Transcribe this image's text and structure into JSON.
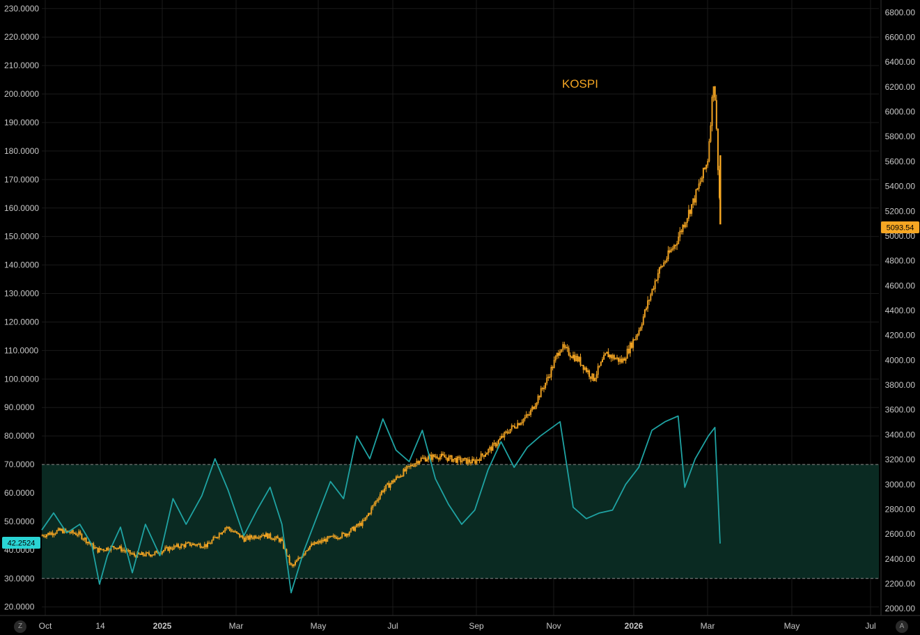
{
  "colors": {
    "background": "#000000",
    "grid": "#1a1a1a",
    "candle": "#f5a623",
    "rsi_line": "#1fa3a3",
    "band_fill": "#0a2a22",
    "band_line": "#8a8a8a",
    "left_badge": "#2ad4d4",
    "right_badge": "#f5a623"
  },
  "corner_buttons": {
    "left": "Z",
    "right": "A"
  },
  "chart_data": {
    "type": "line",
    "x_labels": [
      "Oct",
      "14",
      "2025",
      "Mar",
      "May",
      "Jul",
      "Sep",
      "Nov",
      "2026",
      "Mar",
      "May",
      "Jul"
    ],
    "x_bold": [
      "2025",
      "2026"
    ],
    "left_axis": {
      "ticks": [
        "230.0000",
        "220.0000",
        "210.0000",
        "200.0000",
        "190.0000",
        "180.0000",
        "170.0000",
        "160.0000",
        "150.0000",
        "140.0000",
        "130.0000",
        "120.0000",
        "110.0000",
        "100.0000",
        "90.0000",
        "80.0000",
        "70.0000",
        "60.0000",
        "50.0000",
        "40.0000",
        "30.0000",
        "20.0000"
      ],
      "range": [
        17,
        233
      ],
      "last_value_label": "42.2524",
      "band": [
        30,
        70
      ]
    },
    "right_axis": {
      "ticks": [
        "6800.00",
        "6600.00",
        "6400.00",
        "6200.00",
        "6000.00",
        "5800.00",
        "5600.00",
        "5400.00",
        "5200.00",
        "5000.00",
        "4800.00",
        "4600.00",
        "4400.00",
        "4200.00",
        "4000.00",
        "3800.00",
        "3600.00",
        "3400.00",
        "3200.00",
        "3000.00",
        "2800.00",
        "2600.00",
        "2400.00",
        "2200.00",
        "2000.00"
      ],
      "range": [
        1945,
        6900
      ],
      "last_value_label": "5093.54"
    },
    "series": [
      {
        "name": "KOSPI",
        "axis": "right",
        "kind": "candlestick",
        "close_path": [
          [
            "2024-10-01",
            2590
          ],
          [
            "2024-10-15",
            2630
          ],
          [
            "2024-10-29",
            2600
          ],
          [
            "2024-11-12",
            2470
          ],
          [
            "2024-11-26",
            2500
          ],
          [
            "2024-12-10",
            2430
          ],
          [
            "2024-12-24",
            2440
          ],
          [
            "2025-01-07",
            2490
          ],
          [
            "2025-01-21",
            2520
          ],
          [
            "2025-02-04",
            2510
          ],
          [
            "2025-02-18",
            2660
          ],
          [
            "2025-03-04",
            2560
          ],
          [
            "2025-03-18",
            2600
          ],
          [
            "2025-04-01",
            2550
          ],
          [
            "2025-04-09",
            2330
          ],
          [
            "2025-04-22",
            2500
          ],
          [
            "2025-05-06",
            2560
          ],
          [
            "2025-05-20",
            2600
          ],
          [
            "2025-06-03",
            2700
          ],
          [
            "2025-06-17",
            2950
          ],
          [
            "2025-07-01",
            3080
          ],
          [
            "2025-07-15",
            3200
          ],
          [
            "2025-07-29",
            3230
          ],
          [
            "2025-08-12",
            3200
          ],
          [
            "2025-08-26",
            3180
          ],
          [
            "2025-09-09",
            3300
          ],
          [
            "2025-09-23",
            3450
          ],
          [
            "2025-10-07",
            3560
          ],
          [
            "2025-10-21",
            3850
          ],
          [
            "2025-10-31",
            4110
          ],
          [
            "2025-11-14",
            4000
          ],
          [
            "2025-11-25",
            3850
          ],
          [
            "2025-12-05",
            4050
          ],
          [
            "2025-12-17",
            3990
          ],
          [
            "2025-12-30",
            4250
          ],
          [
            "2026-01-13",
            4700
          ],
          [
            "2026-01-27",
            4950
          ],
          [
            "2026-02-10",
            5300
          ],
          [
            "2026-02-20",
            5600
          ],
          [
            "2026-02-25",
            6300
          ],
          [
            "2026-02-27",
            5800
          ],
          [
            "2026-03-02",
            5093.54
          ]
        ]
      },
      {
        "name": "",
        "axis": "left",
        "kind": "line",
        "points": [
          [
            "2024-10-01",
            47
          ],
          [
            "2024-10-10",
            53
          ],
          [
            "2024-10-20",
            46
          ],
          [
            "2024-10-30",
            49
          ],
          [
            "2024-11-08",
            42
          ],
          [
            "2024-11-14",
            28
          ],
          [
            "2024-11-20",
            38
          ],
          [
            "2024-11-30",
            48
          ],
          [
            "2024-12-09",
            32
          ],
          [
            "2024-12-19",
            49
          ],
          [
            "2024-12-30",
            38
          ],
          [
            "2025-01-09",
            58
          ],
          [
            "2025-01-19",
            49
          ],
          [
            "2025-01-31",
            59
          ],
          [
            "2025-02-10",
            72
          ],
          [
            "2025-02-20",
            61
          ],
          [
            "2025-03-04",
            45
          ],
          [
            "2025-03-14",
            54
          ],
          [
            "2025-03-24",
            62
          ],
          [
            "2025-04-02",
            49
          ],
          [
            "2025-04-09",
            25
          ],
          [
            "2025-04-19",
            40
          ],
          [
            "2025-04-29",
            52
          ],
          [
            "2025-05-09",
            64
          ],
          [
            "2025-05-19",
            58
          ],
          [
            "2025-05-29",
            80
          ],
          [
            "2025-06-08",
            72
          ],
          [
            "2025-06-18",
            86
          ],
          [
            "2025-06-28",
            75
          ],
          [
            "2025-07-08",
            71
          ],
          [
            "2025-07-18",
            82
          ],
          [
            "2025-07-28",
            65
          ],
          [
            "2025-08-07",
            56
          ],
          [
            "2025-08-17",
            49
          ],
          [
            "2025-08-27",
            54
          ],
          [
            "2025-09-06",
            68
          ],
          [
            "2025-09-16",
            78
          ],
          [
            "2025-09-26",
            69
          ],
          [
            "2025-10-06",
            76
          ],
          [
            "2025-10-16",
            80
          ],
          [
            "2025-10-31",
            85
          ],
          [
            "2025-11-10",
            55
          ],
          [
            "2025-11-20",
            51
          ],
          [
            "2025-11-30",
            53
          ],
          [
            "2025-12-10",
            54
          ],
          [
            "2025-12-20",
            63
          ],
          [
            "2025-12-30",
            69
          ],
          [
            "2026-01-09",
            82
          ],
          [
            "2026-01-19",
            85
          ],
          [
            "2026-01-29",
            87
          ],
          [
            "2026-02-03",
            62
          ],
          [
            "2026-02-11",
            72
          ],
          [
            "2026-02-21",
            80
          ],
          [
            "2026-02-26",
            83
          ],
          [
            "2026-03-02",
            42.2524
          ]
        ]
      }
    ],
    "annotations": [
      "KOSPI"
    ]
  }
}
